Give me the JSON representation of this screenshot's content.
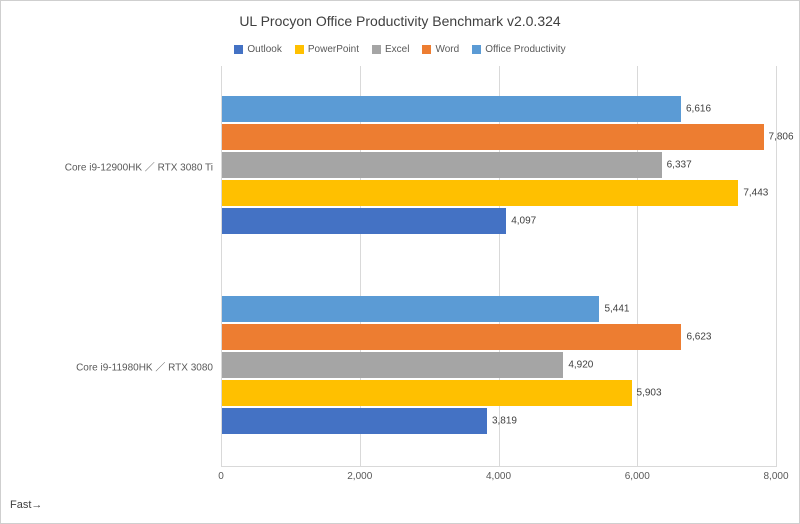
{
  "chart_data": {
    "type": "bar",
    "orientation": "horizontal",
    "title": "UL Procyon Office Productivity Benchmark v2.0.324",
    "categories": [
      "Core i9-12900HK ／ RTX 3080 Ti",
      "Core i9-11980HK ／ RTX 3080"
    ],
    "series": [
      {
        "name": "Outlook",
        "color": "#4472C4",
        "values": [
          4097,
          3819
        ]
      },
      {
        "name": "PowerPoint",
        "color": "#FFC000",
        "values": [
          7443,
          5903
        ]
      },
      {
        "name": "Excel",
        "color": "#A5A5A5",
        "values": [
          6337,
          4920
        ]
      },
      {
        "name": "Word",
        "color": "#ED7D31",
        "values": [
          7806,
          6623
        ]
      },
      {
        "name": "Office Productivity",
        "color": "#5B9BD5",
        "values": [
          6616,
          5441
        ]
      }
    ],
    "bar_order_top_to_bottom": [
      "Office Productivity",
      "Word",
      "Excel",
      "PowerPoint",
      "Outlook"
    ],
    "data_labels": [
      "6,616",
      "7,806",
      "6,337",
      "7,443",
      "4,097",
      "5,441",
      "6,623",
      "4,920",
      "5,903",
      "3,819"
    ],
    "xlim": [
      0,
      8000
    ],
    "x_ticks": [
      0,
      2000,
      4000,
      6000,
      8000
    ],
    "x_tick_labels": [
      "0",
      "2,000",
      "4,000",
      "6,000",
      "8,000"
    ],
    "grid": true,
    "legend_position": "top",
    "legend_order": [
      "Outlook",
      "PowerPoint",
      "Excel",
      "Word",
      "Office Productivity"
    ]
  },
  "footer": {
    "fast_label": "Fast→"
  },
  "colors": {
    "axis_line": "#d9d9d9",
    "gridline": "#d9d9d9",
    "title_text": "#404040",
    "legend_text": "#595959",
    "category_text": "#595959",
    "data_label_text": "#404040"
  }
}
